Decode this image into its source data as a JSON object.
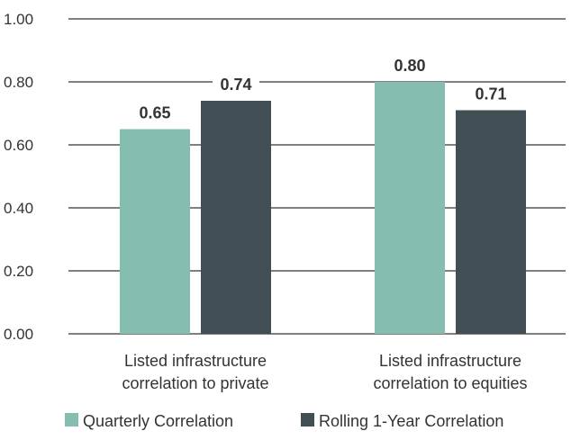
{
  "chart_data": {
    "type": "bar",
    "categories": [
      [
        "Listed infrastructure",
        "correlation to private"
      ],
      [
        "Listed infrastructure",
        "correlation to equities"
      ]
    ],
    "series": [
      {
        "name": "Quarterly Correlation",
        "values": [
          0.65,
          0.8
        ],
        "value_labels": [
          "0.65",
          "0.80"
        ],
        "color": "#85BDB0"
      },
      {
        "name": "Rolling 1-Year Correlation",
        "values": [
          0.74,
          0.71
        ],
        "value_labels": [
          "0.74",
          "0.71"
        ],
        "color": "#414F54"
      }
    ],
    "ylim": [
      0,
      1.0
    ],
    "yticks": [
      0.0,
      0.2,
      0.4,
      0.6,
      0.8,
      1.0
    ],
    "ytick_labels": [
      "0.00",
      "0.20",
      "0.40",
      "0.60",
      "0.80",
      "1.00"
    ],
    "grid": true,
    "legend_position": "bottom"
  }
}
